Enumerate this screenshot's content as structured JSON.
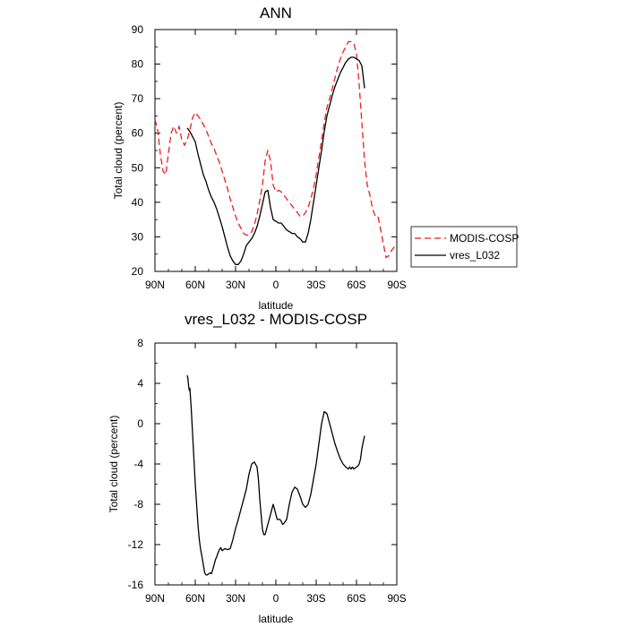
{
  "chart_data": [
    {
      "type": "line",
      "title": "ANN",
      "xlabel": "latitude",
      "ylabel": "Total cloud (percent)",
      "xlim": [
        -90,
        90
      ],
      "ylim": [
        20,
        90
      ],
      "xticks": [
        -90,
        -60,
        -30,
        0,
        30,
        60,
        90
      ],
      "xtick_labels": [
        "90N",
        "60N",
        "30N",
        "0",
        "30S",
        "60S",
        "90S"
      ],
      "yticks": [
        20,
        30,
        40,
        50,
        60,
        70,
        80,
        90
      ],
      "ytick_labels": [
        "20",
        "30",
        "40",
        "50",
        "60",
        "70",
        "80",
        "90"
      ],
      "grid": false,
      "legend": {
        "placement": "right, outside plot"
      },
      "series": [
        {
          "name": "MODIS-COSP",
          "color": "#e8201c",
          "dash": "dashed",
          "x": [
            -90,
            -88,
            -86,
            -84,
            -82,
            -80,
            -78,
            -76,
            -74,
            -72,
            -70,
            -68,
            -66,
            -64,
            -62,
            -60,
            -58,
            -56,
            -54,
            -52,
            -50,
            -48,
            -46,
            -44,
            -42,
            -40,
            -38,
            -36,
            -34,
            -32,
            -30,
            -28,
            -26,
            -24,
            -22,
            -20,
            -18,
            -16,
            -14,
            -12,
            -10,
            -8,
            -6,
            -4,
            -2,
            0,
            2,
            4,
            6,
            8,
            10,
            12,
            14,
            16,
            18,
            20,
            22,
            24,
            26,
            28,
            30,
            32,
            34,
            36,
            38,
            40,
            42,
            44,
            46,
            48,
            50,
            52,
            54,
            56,
            58,
            60,
            62,
            64,
            66,
            68,
            70,
            72,
            74,
            76,
            78,
            80,
            82,
            84,
            86,
            88,
            90
          ],
          "y": [
            64,
            61,
            54,
            49,
            48,
            54,
            60,
            62,
            60,
            62,
            58,
            56.5,
            58,
            61,
            64.5,
            66,
            65,
            64,
            62.5,
            61,
            59,
            57,
            55.5,
            53.5,
            51.5,
            49,
            46.5,
            44,
            41,
            38.5,
            36,
            34,
            32.5,
            31,
            30.5,
            30.5,
            31.5,
            33.5,
            36.5,
            40.5,
            45,
            52,
            55,
            52,
            45,
            43,
            43.5,
            43,
            42,
            41,
            40,
            39,
            38,
            37,
            36,
            36,
            37,
            38.5,
            41,
            44,
            48,
            53,
            58,
            63,
            67.5,
            70,
            73,
            76,
            79,
            81.5,
            83.5,
            85,
            86.5,
            86.5,
            86,
            83,
            74,
            63,
            52,
            45,
            42,
            38,
            36,
            36,
            32,
            28,
            24,
            24.5,
            26,
            27,
            28
          ]
        },
        {
          "name": "vres_L032",
          "color": "#000000",
          "dash": "solid",
          "x": [
            -66,
            -64,
            -62,
            -60,
            -58,
            -56,
            -54,
            -52,
            -50,
            -48,
            -46,
            -44,
            -42,
            -40,
            -38,
            -36,
            -34,
            -32,
            -30,
            -28,
            -26,
            -24,
            -22,
            -20,
            -18,
            -16,
            -14,
            -12,
            -10,
            -8,
            -6,
            -4,
            -2,
            0,
            2,
            4,
            6,
            8,
            10,
            12,
            14,
            16,
            18,
            20,
            22,
            24,
            26,
            28,
            30,
            32,
            34,
            36,
            38,
            40,
            42,
            44,
            46,
            48,
            50,
            52,
            54,
            56,
            58,
            60,
            62,
            64,
            66
          ],
          "y": [
            61.5,
            60.5,
            59,
            57.5,
            54,
            51,
            48,
            46,
            43.5,
            41.5,
            40,
            38,
            35.5,
            33,
            30,
            27,
            24.5,
            23,
            22,
            22,
            23,
            25,
            27.5,
            28.5,
            29.5,
            31,
            33,
            36,
            39.5,
            43,
            43.5,
            38.5,
            35,
            34.5,
            34,
            34,
            33,
            32,
            31.5,
            31,
            31,
            30,
            29.5,
            28.5,
            28.5,
            31,
            35,
            40,
            45,
            50,
            55,
            60.5,
            65,
            68,
            71,
            73.5,
            75.5,
            77.5,
            79,
            80.5,
            81.5,
            82,
            82,
            81.5,
            81,
            79.5,
            73
          ]
        }
      ]
    },
    {
      "type": "line",
      "title": "vres_L032 - MODIS-COSP",
      "xlabel": "latitude",
      "ylabel": "Total cloud (percent)",
      "xlim": [
        -90,
        90
      ],
      "ylim": [
        -16,
        8
      ],
      "xticks": [
        -90,
        -60,
        -30,
        0,
        30,
        60,
        90
      ],
      "xtick_labels": [
        "90N",
        "60N",
        "30N",
        "0",
        "30S",
        "60S",
        "90S"
      ],
      "yticks": [
        -16,
        -12,
        -8,
        -4,
        0,
        4,
        8
      ],
      "ytick_labels": [
        "-16",
        "-12",
        "-8",
        "-4",
        "0",
        "4",
        "8"
      ],
      "grid": false,
      "series": [
        {
          "color": "#000000",
          "dash": "solid",
          "x": [
            -66,
            -65.5,
            -65,
            -64.5,
            -64,
            -63,
            -62,
            -61,
            -60,
            -59,
            -58,
            -57,
            -56,
            -55,
            -54,
            -53,
            -52,
            -51,
            -50,
            -49,
            -48,
            -47,
            -46,
            -45,
            -44,
            -43,
            -42,
            -41,
            -40,
            -38,
            -36,
            -34,
            -32,
            -30,
            -28,
            -26,
            -24,
            -22,
            -20,
            -18,
            -16,
            -14,
            -13,
            -12,
            -11,
            -10,
            -9,
            -8,
            -7,
            -6,
            -5,
            -4,
            -3,
            -2,
            -1,
            0,
            1,
            2,
            3,
            4,
            5,
            6,
            7,
            8,
            10,
            12,
            14,
            16,
            18,
            20,
            22,
            24,
            26,
            28,
            30,
            32,
            34,
            36,
            38,
            40,
            42,
            44,
            46,
            48,
            50,
            52,
            54,
            55,
            56,
            57,
            58,
            59,
            60,
            61,
            62,
            63,
            64,
            65,
            66
          ],
          "y": [
            4.8,
            4.5,
            3.8,
            3.3,
            3.5,
            1.5,
            -1,
            -3.5,
            -6,
            -8,
            -10,
            -11.5,
            -12.5,
            -13.2,
            -14,
            -14.8,
            -15,
            -15,
            -14.9,
            -14.8,
            -14.9,
            -14.5,
            -14,
            -13.5,
            -13.2,
            -12.8,
            -12.5,
            -12.3,
            -12.6,
            -12.4,
            -12.5,
            -12.4,
            -11.5,
            -10.4,
            -9.5,
            -8.5,
            -7.5,
            -6.5,
            -5,
            -4,
            -3.8,
            -4.3,
            -5.5,
            -7.5,
            -9,
            -10.5,
            -11,
            -11,
            -10.5,
            -10,
            -9.5,
            -9,
            -8.5,
            -8,
            -8.5,
            -9,
            -9.5,
            -9.5,
            -9.5,
            -9.7,
            -10,
            -9.9,
            -9.7,
            -9.5,
            -8,
            -6.8,
            -6.3,
            -6.5,
            -7.2,
            -8,
            -8.3,
            -8,
            -7,
            -5.5,
            -4,
            -2,
            0,
            1.2,
            1,
            0,
            -1,
            -2,
            -2.8,
            -3.5,
            -4,
            -4.3,
            -4.5,
            -4.3,
            -4.5,
            -4.3,
            -4.5,
            -4.4,
            -4.3,
            -4.2,
            -4,
            -3.5,
            -2.5,
            -1.8,
            -1.2
          ]
        }
      ]
    }
  ]
}
